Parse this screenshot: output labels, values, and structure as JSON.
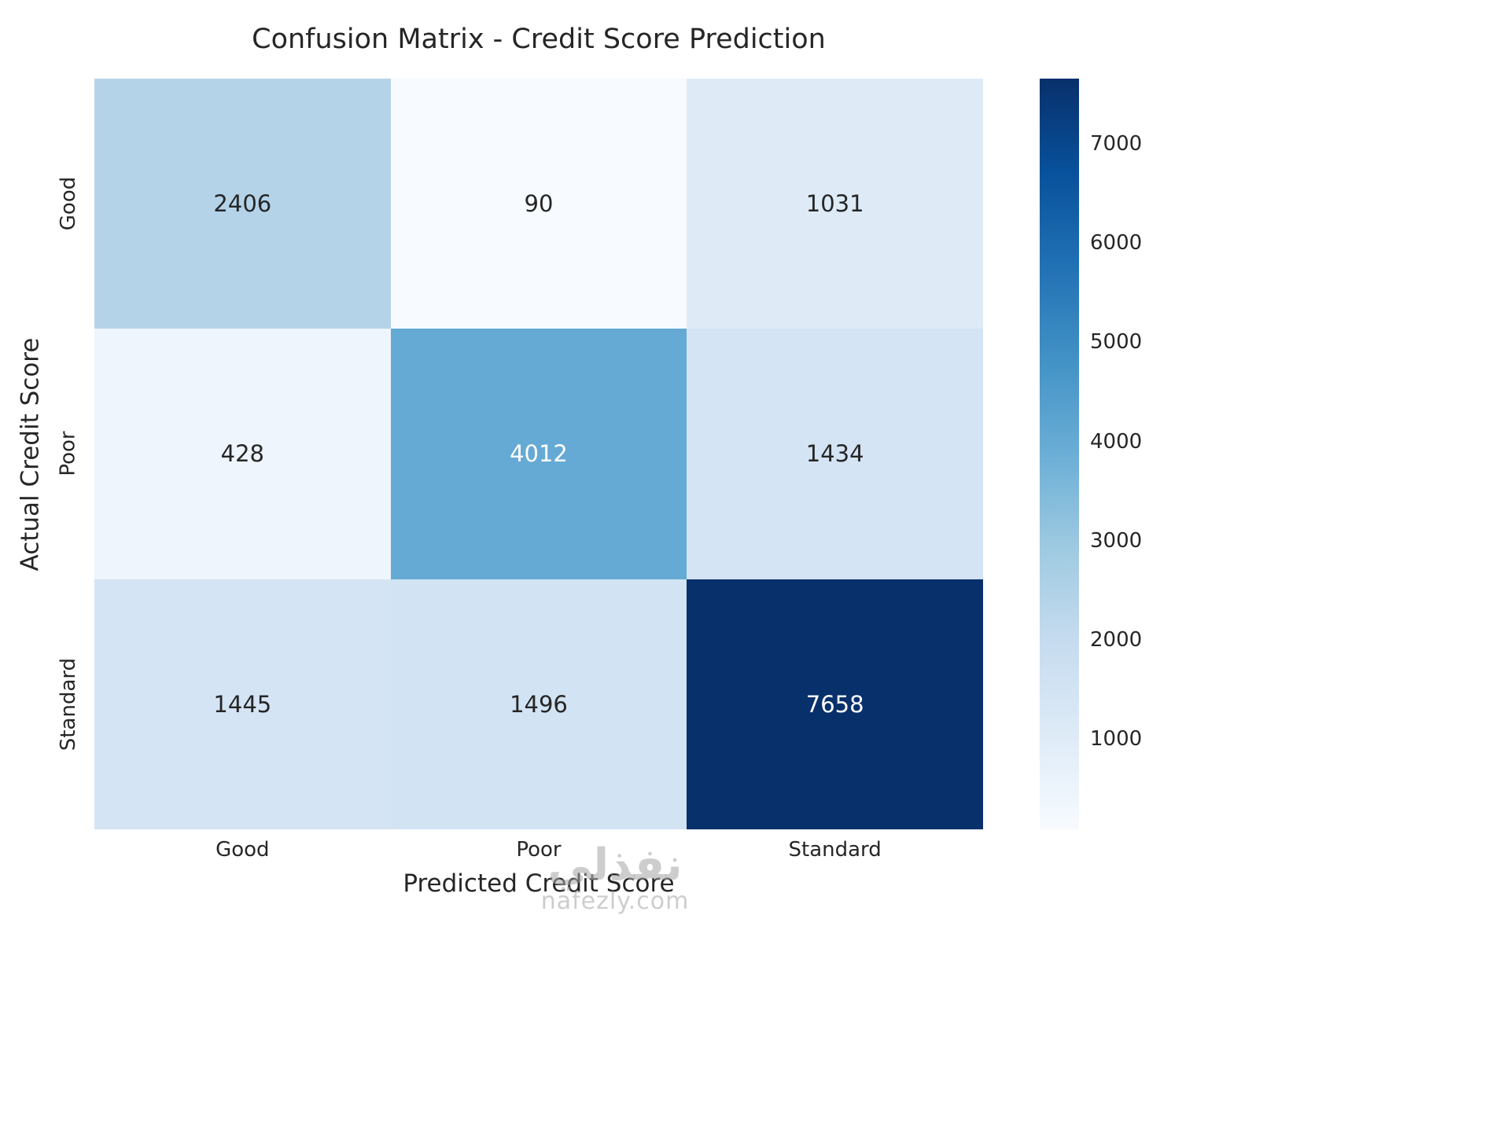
{
  "chart_data": {
    "type": "heatmap",
    "title": "Confusion Matrix - Credit Score Prediction",
    "xlabel": "Predicted Credit Score",
    "ylabel": "Actual Credit Score",
    "x_categories": [
      "Good",
      "Poor",
      "Standard"
    ],
    "y_categories": [
      "Good",
      "Poor",
      "Standard"
    ],
    "matrix": [
      [
        2406,
        90,
        1031
      ],
      [
        428,
        4012,
        1434
      ],
      [
        1445,
        1496,
        7658
      ]
    ],
    "vmin": 90,
    "vmax": 7658,
    "colormap": "Blues",
    "colorbar_ticks": [
      1000,
      2000,
      3000,
      4000,
      5000,
      6000,
      7000
    ],
    "annotation_colors": {
      "light_cell_text": "#262626",
      "dark_cell_text": "#ffffff"
    },
    "legend_position": "right",
    "grid": false
  },
  "watermark": {
    "line1": "نفذلي",
    "line2": "nafezly.com"
  }
}
